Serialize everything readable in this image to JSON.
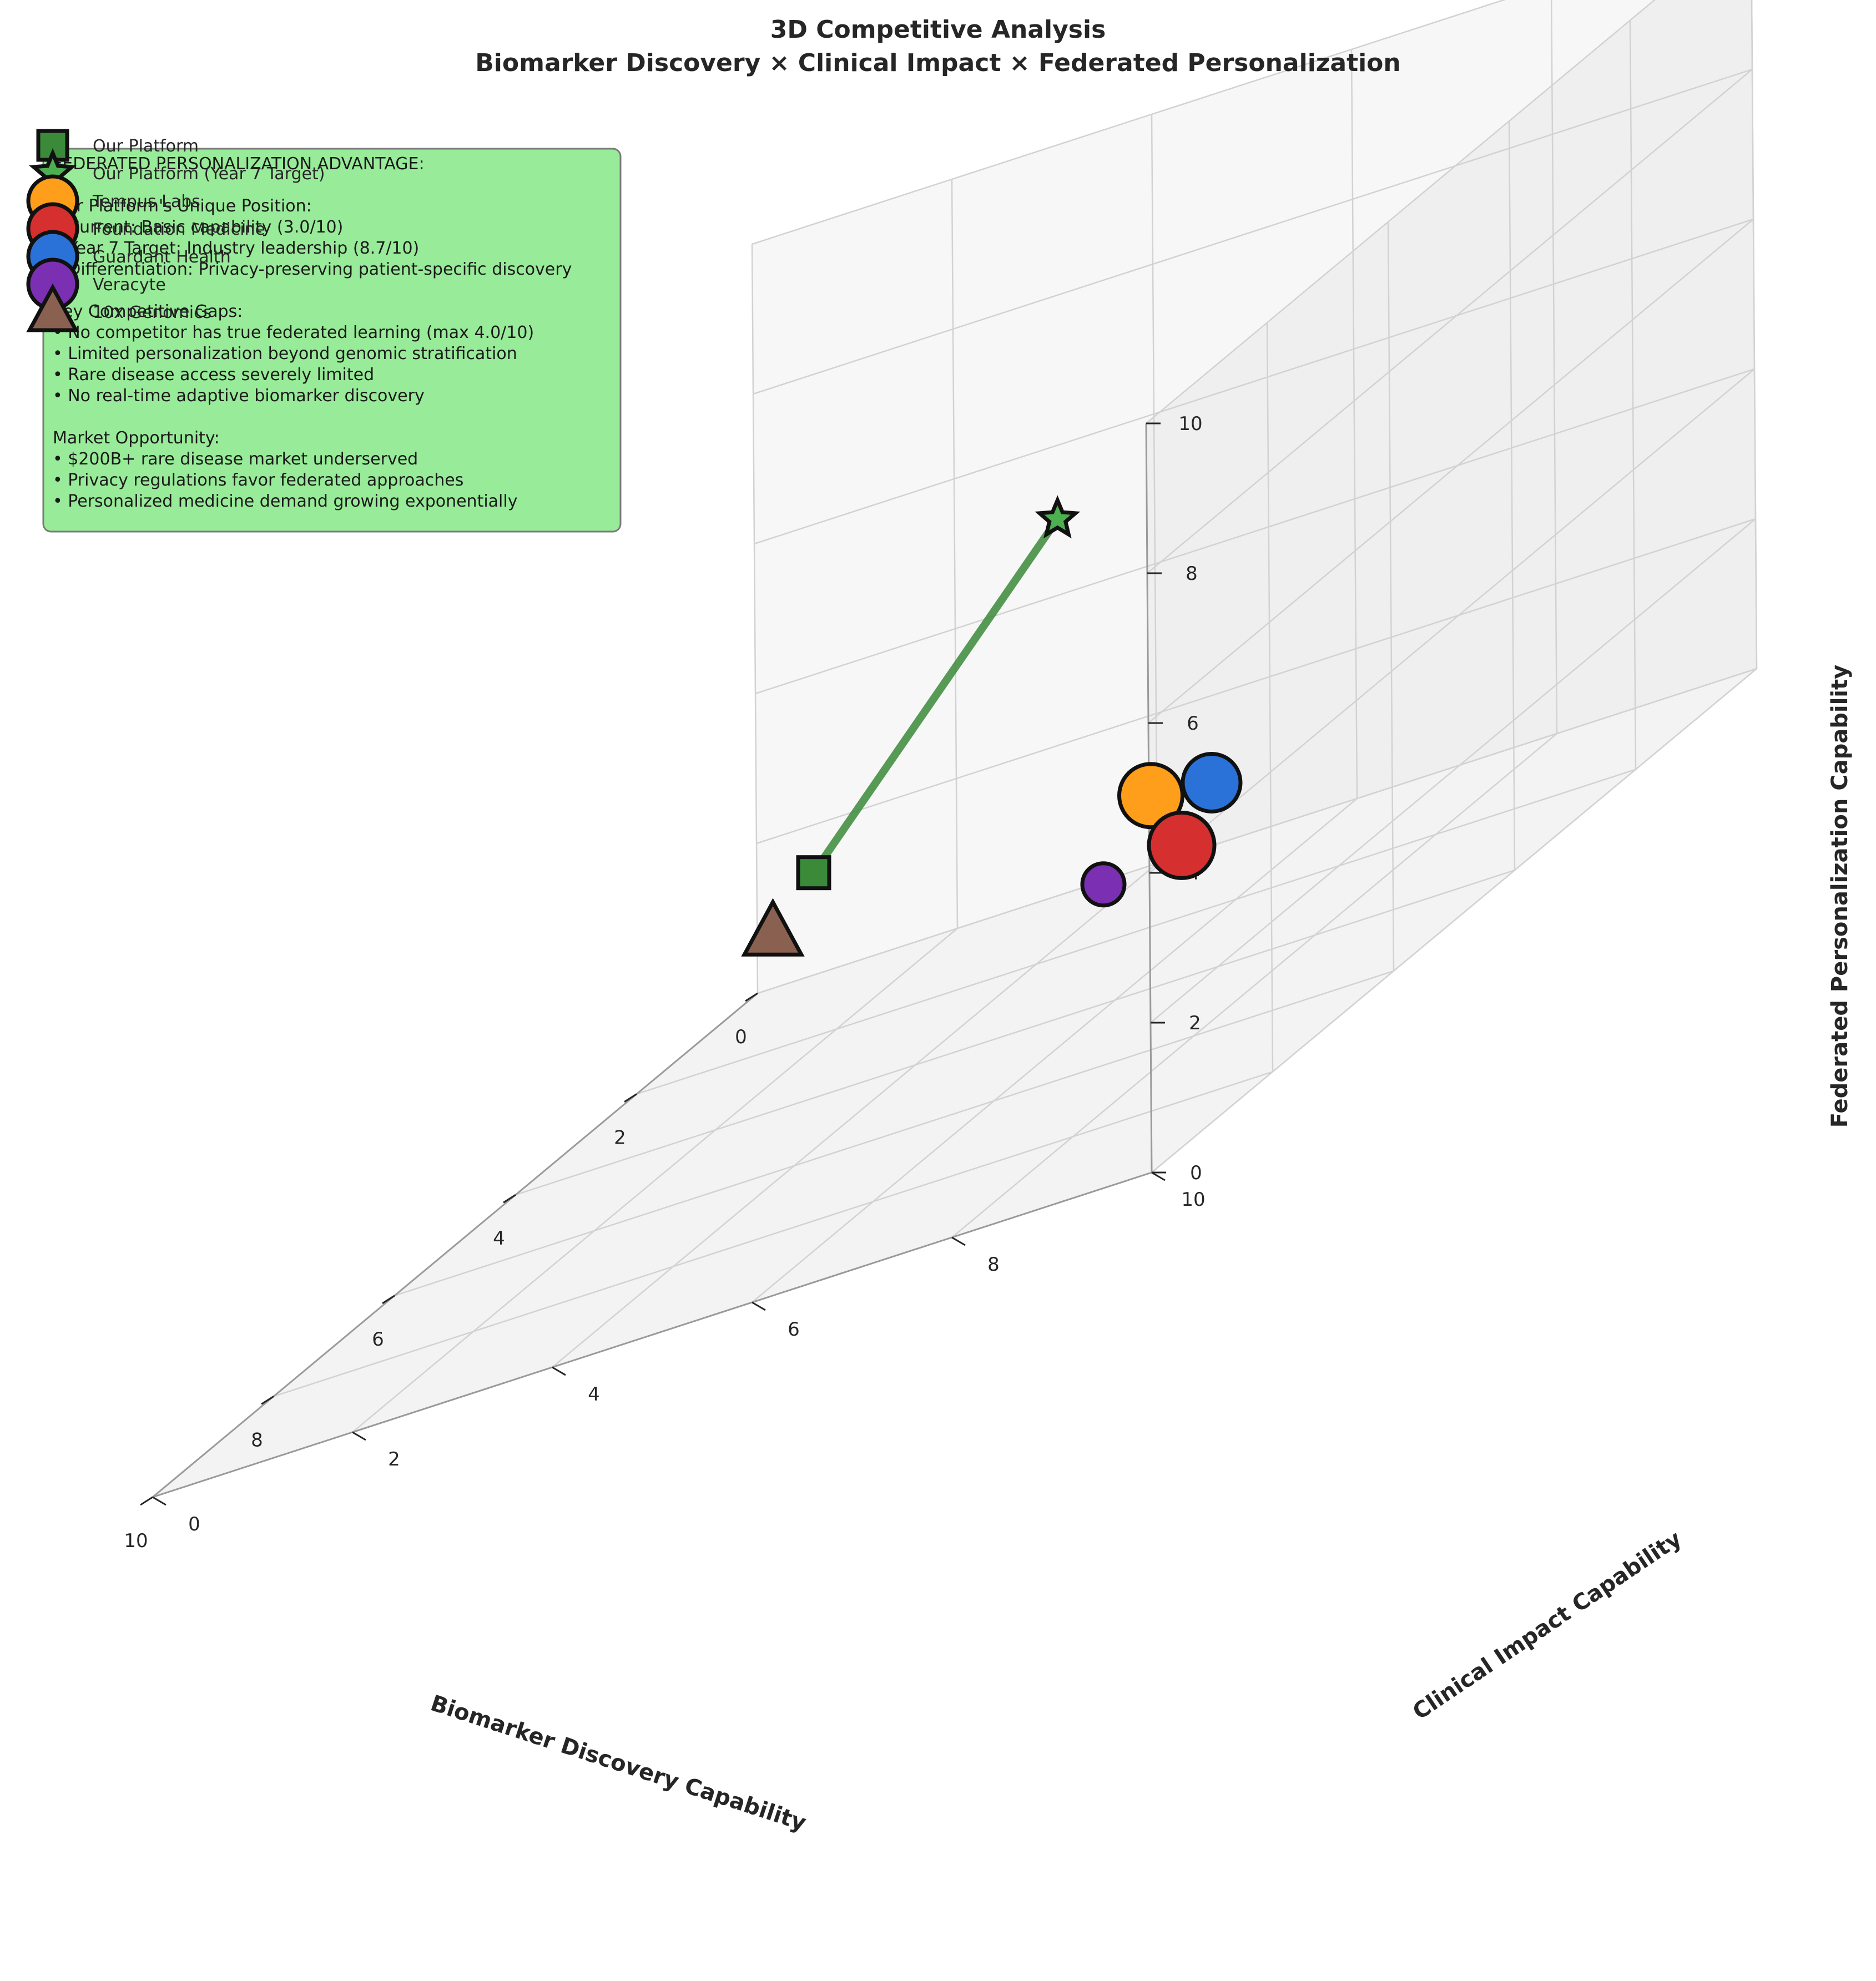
{
  "chart_data": {
    "type": "scatter3d",
    "title": "3D Competitive Analysis",
    "subtitle": "Biomarker Discovery × Clinical Impact × Federated Personalization",
    "xlabel": "Biomarker Discovery Capability",
    "ylabel": "Clinical Impact Capability",
    "zlabel": "Federated Personalization Capability",
    "xlim": [
      0,
      10
    ],
    "ylim": [
      0,
      10
    ],
    "zlim": [
      0,
      10
    ],
    "x_ticks": [
      0,
      2,
      4,
      6,
      8,
      10
    ],
    "y_ticks": [
      0,
      2,
      4,
      6,
      8,
      10
    ],
    "z_ticks": [
      0,
      2,
      4,
      6,
      8,
      10
    ],
    "grid": true,
    "legend_position": "top-left",
    "points": [
      {
        "name": "Our Platform",
        "marker": "square",
        "color": "#3a8a3a",
        "x": 4.0,
        "y": 3.0,
        "z": 3.0
      },
      {
        "name": "Our Platform (Year 7 Target)",
        "marker": "star",
        "color": "#4caf50",
        "x": 9.0,
        "y": 8.5,
        "z": 8.7
      },
      {
        "name": "Tempus Labs",
        "marker": "circle",
        "color": "#ff9e1b",
        "x": 7.5,
        "y": 8.5,
        "z": 4.0
      },
      {
        "name": "Foundation Medicine",
        "marker": "circle",
        "color": "#d62f2f",
        "x": 7.0,
        "y": 8.5,
        "z": 3.0
      },
      {
        "name": "Guardant Health",
        "marker": "circle",
        "color": "#2a72d8",
        "x": 6.5,
        "y": 8.5,
        "z": 3.5
      },
      {
        "name": "Veracyte",
        "marker": "circle",
        "color": "#7b2fb3",
        "x": 5.0,
        "y": 6.5,
        "z": 2.0
      },
      {
        "name": "10x Genomics",
        "marker": "triangle",
        "color": "#8a6150",
        "x": 5.5,
        "y": 3.5,
        "z": 3.0
      }
    ],
    "trajectory": {
      "from": "Our Platform",
      "to": "Our Platform (Year 7 Target)",
      "color": "#3a8a3a"
    },
    "annotation": {
      "lines": [
        "FEDERATED PERSONALIZATION ADVANTAGE:",
        "",
        "Our Platform's Unique Position:",
        "• Current: Basic capability (3.0/10)",
        "• Year 7 Target: Industry leadership (8.7/10)",
        "• Differentiation: Privacy-preserving patient-specific discovery",
        "",
        "Key Competitive Gaps:",
        "• No competitor has true federated learning (max 4.0/10)",
        "• Limited personalization beyond genomic stratification",
        "• Rare disease access severely limited",
        "• No real-time adaptive biomarker discovery",
        "",
        "Market Opportunity:",
        "• $200B+ rare disease market underserved",
        "• Privacy regulations favor federated approaches",
        "• Personalized medicine demand growing exponentially"
      ],
      "background": "#98eb98"
    }
  }
}
